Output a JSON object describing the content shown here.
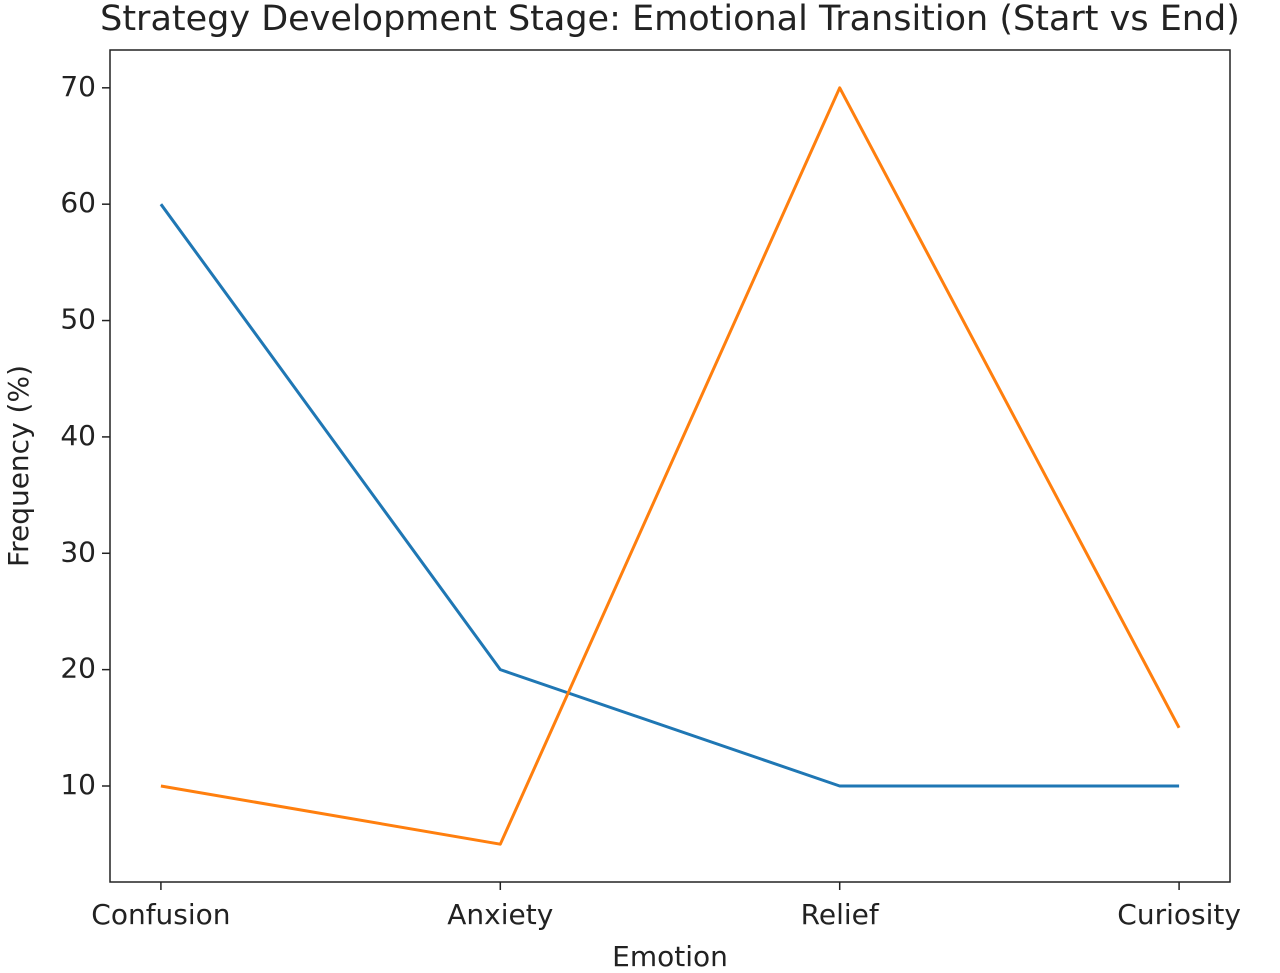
{
  "chart_data": {
    "type": "line",
    "title": "Strategy Development Stage: Emotional Transition (Start vs End)",
    "x_label": "Emotion",
    "y_label": "Frequency (%)",
    "categories": [
      "Confusion",
      "Anxiety",
      "Relief",
      "Curiosity"
    ],
    "series": [
      {
        "color": "#1f77b4",
        "values": [
          60,
          20,
          10,
          10
        ]
      },
      {
        "color": "#ff7f0e",
        "values": [
          10,
          5,
          70,
          15
        ]
      }
    ],
    "ylim": [
      1.75,
      73.25
    ],
    "yticks": [
      10,
      20,
      30,
      40,
      50,
      60,
      70
    ],
    "grid": false
  }
}
